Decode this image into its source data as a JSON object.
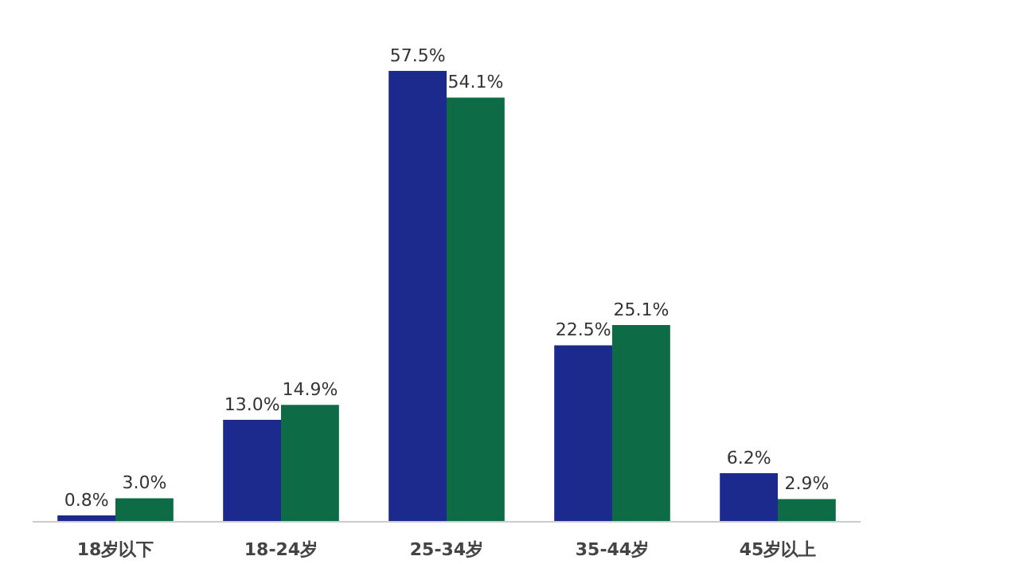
{
  "chart_data": {
    "type": "bar",
    "categories": [
      "18岁以下",
      "18-24岁",
      "25-34岁",
      "35-44岁",
      "45岁以上"
    ],
    "series": [
      {
        "color": "#1b2a8c",
        "values": [
          0.8,
          13.0,
          57.5,
          22.5,
          6.2
        ],
        "value_labels": [
          "0.8%",
          "13.0%",
          "57.5%",
          "22.5%",
          "6.2%"
        ]
      },
      {
        "color": "#0d6b45",
        "values": [
          3.0,
          14.9,
          54.1,
          25.1,
          2.9
        ],
        "value_labels": [
          "3.0%",
          "14.9%",
          "54.1%",
          "25.1%",
          "2.9%"
        ]
      }
    ],
    "tick_labels": "x",
    "grid": false
  }
}
